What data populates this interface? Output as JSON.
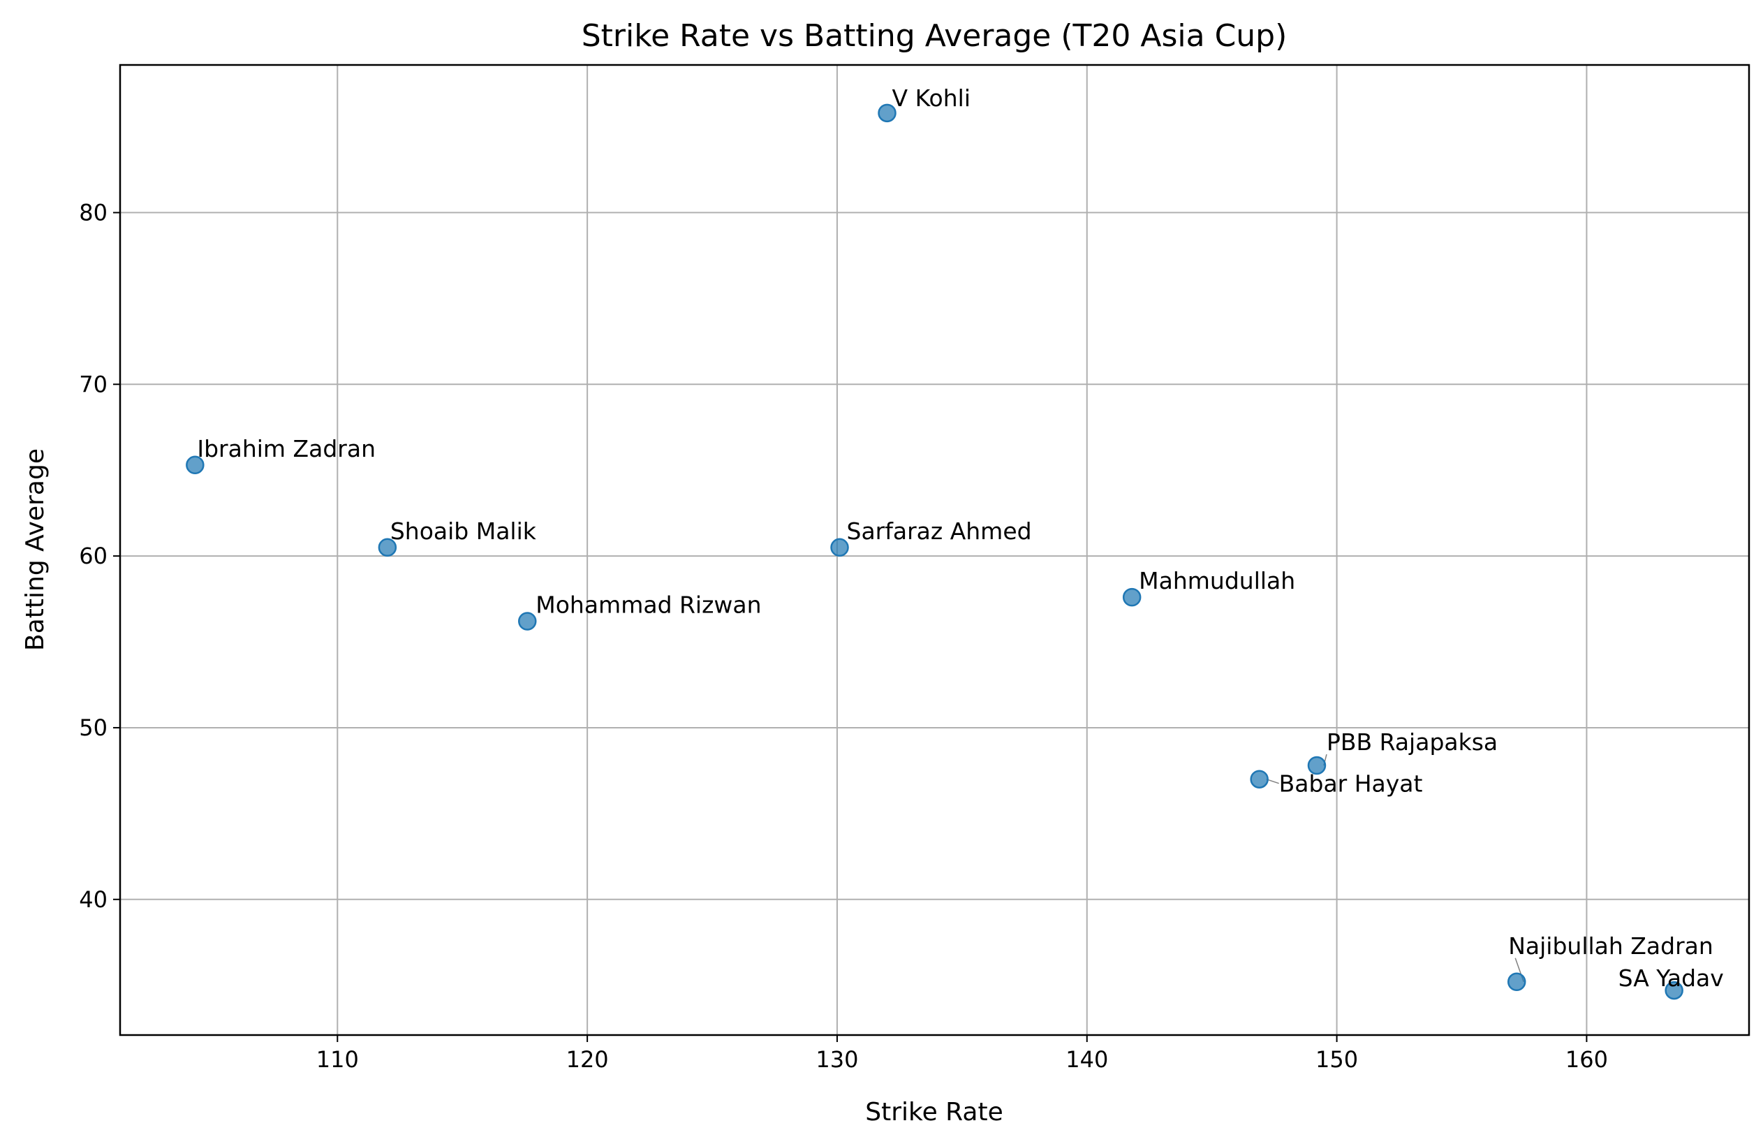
{
  "chart_data": {
    "type": "scatter",
    "title": "Strike Rate vs Batting Average (T20 Asia Cup)",
    "xlabel": "Strike Rate",
    "ylabel": "Batting Average",
    "xlim": [
      101.3,
      166.5
    ],
    "ylim": [
      32.1,
      88.6
    ],
    "xticks": [
      110,
      120,
      130,
      140,
      150,
      160
    ],
    "yticks": [
      40,
      50,
      60,
      70,
      80
    ],
    "grid": true,
    "marker_color": "#1f77b4",
    "marker_alpha": 0.7,
    "points": [
      {
        "label": "V Kohli",
        "x": 132.0,
        "y": 85.8
      },
      {
        "label": "Ibrahim Zadran",
        "x": 104.3,
        "y": 65.3
      },
      {
        "label": "Shoaib Malik",
        "x": 112.0,
        "y": 60.5
      },
      {
        "label": "Sarfaraz Ahmed",
        "x": 130.1,
        "y": 60.5
      },
      {
        "label": "Mohammad Rizwan",
        "x": 117.6,
        "y": 56.2
      },
      {
        "label": "Mahmudullah",
        "x": 141.8,
        "y": 57.6
      },
      {
        "label": "PBB Rajapaksa",
        "x": 149.2,
        "y": 47.8
      },
      {
        "label": "Babar Hayat",
        "x": 146.9,
        "y": 47.0
      },
      {
        "label": "Najibullah Zadran",
        "x": 157.2,
        "y": 35.2
      },
      {
        "label": "SA Yadav",
        "x": 163.5,
        "y": 34.7
      }
    ]
  }
}
